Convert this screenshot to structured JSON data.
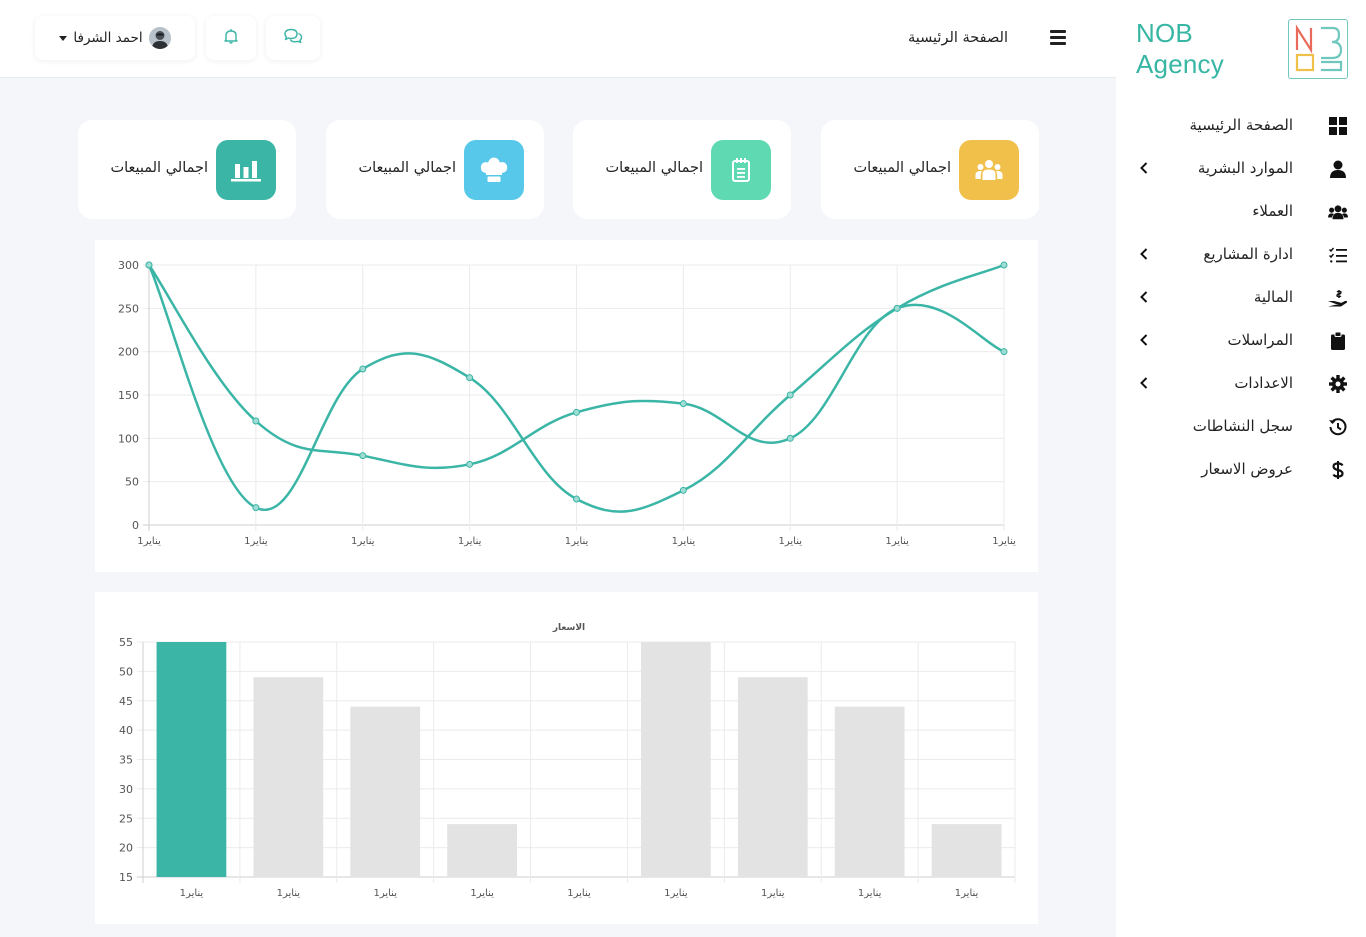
{
  "sidebar": {
    "brand": {
      "name": "NOB Agency",
      "logo_letters": [
        "N",
        "O",
        "B"
      ]
    },
    "items": [
      {
        "label": "الصفحة الرئيسية",
        "icon": "dashboard-grid-icon",
        "has_submenu": false
      },
      {
        "label": "الموارد البشرية",
        "icon": "user-icon",
        "has_submenu": true
      },
      {
        "label": "العملاء",
        "icon": "users-icon",
        "has_submenu": false
      },
      {
        "label": "ادارة المشاريع",
        "icon": "tasks-list-icon",
        "has_submenu": true
      },
      {
        "label": "المالية",
        "icon": "hand-holding-money-icon",
        "has_submenu": true
      },
      {
        "label": "المراسلات",
        "icon": "clipboard-icon",
        "has_submenu": true
      },
      {
        "label": "الاعدادات",
        "icon": "gear-icon",
        "has_submenu": true
      },
      {
        "label": "سجل النشاطات",
        "icon": "history-icon",
        "has_submenu": false
      },
      {
        "label": "عروض الاسعار",
        "icon": "dollar-icon",
        "has_submenu": false
      }
    ]
  },
  "topbar": {
    "page_title": "الصفحة الرئيسية",
    "user_name": "احمد الشرفا"
  },
  "cards": [
    {
      "label": "اجمالي المبيعات",
      "icon": "users-icon",
      "color": "#f0c04b"
    },
    {
      "label": "اجمالي المبيعات",
      "icon": "notepad-icon",
      "color": "#5fd9b1"
    },
    {
      "label": "اجمالي المبيعات",
      "icon": "chef-hat-icon",
      "color": "#58c8ea"
    },
    {
      "label": "اجمالي المبيعات",
      "icon": "bar-chart-icon",
      "color": "#3ab5a6"
    }
  ],
  "colors": {
    "accent": "#3ab5a6",
    "bar_inactive": "#e3e3e3"
  },
  "chart_data": [
    {
      "type": "line",
      "categories": [
        "1يناير",
        "1يناير",
        "1يناير",
        "1يناير",
        "1يناير",
        "1يناير",
        "1يناير",
        "1يناير",
        "1يناير"
      ],
      "series": [
        {
          "values": [
            300,
            120,
            80,
            70,
            130,
            140,
            100,
            250,
            200
          ]
        },
        {
          "values": [
            300,
            20,
            180,
            170,
            30,
            40,
            150,
            250,
            300
          ]
        }
      ],
      "ylim": [
        0,
        300
      ],
      "yticks": [
        0,
        50,
        100,
        150,
        200,
        250,
        300
      ],
      "grid": true,
      "color": "#3ab5a6"
    },
    {
      "type": "bar",
      "title": "الاسعار",
      "categories": [
        "1يناير",
        "1يناير",
        "1يناير",
        "1يناير",
        "1يناير",
        "1يناير",
        "1يناير",
        "1يناير",
        "1يناير"
      ],
      "values": [
        55,
        49,
        44,
        24,
        null,
        55,
        49,
        44,
        24
      ],
      "ylim": [
        15,
        55
      ],
      "yticks": [
        15,
        20,
        25,
        30,
        35,
        40,
        45,
        50,
        55
      ],
      "highlight_index": 0,
      "grid": true
    }
  ]
}
